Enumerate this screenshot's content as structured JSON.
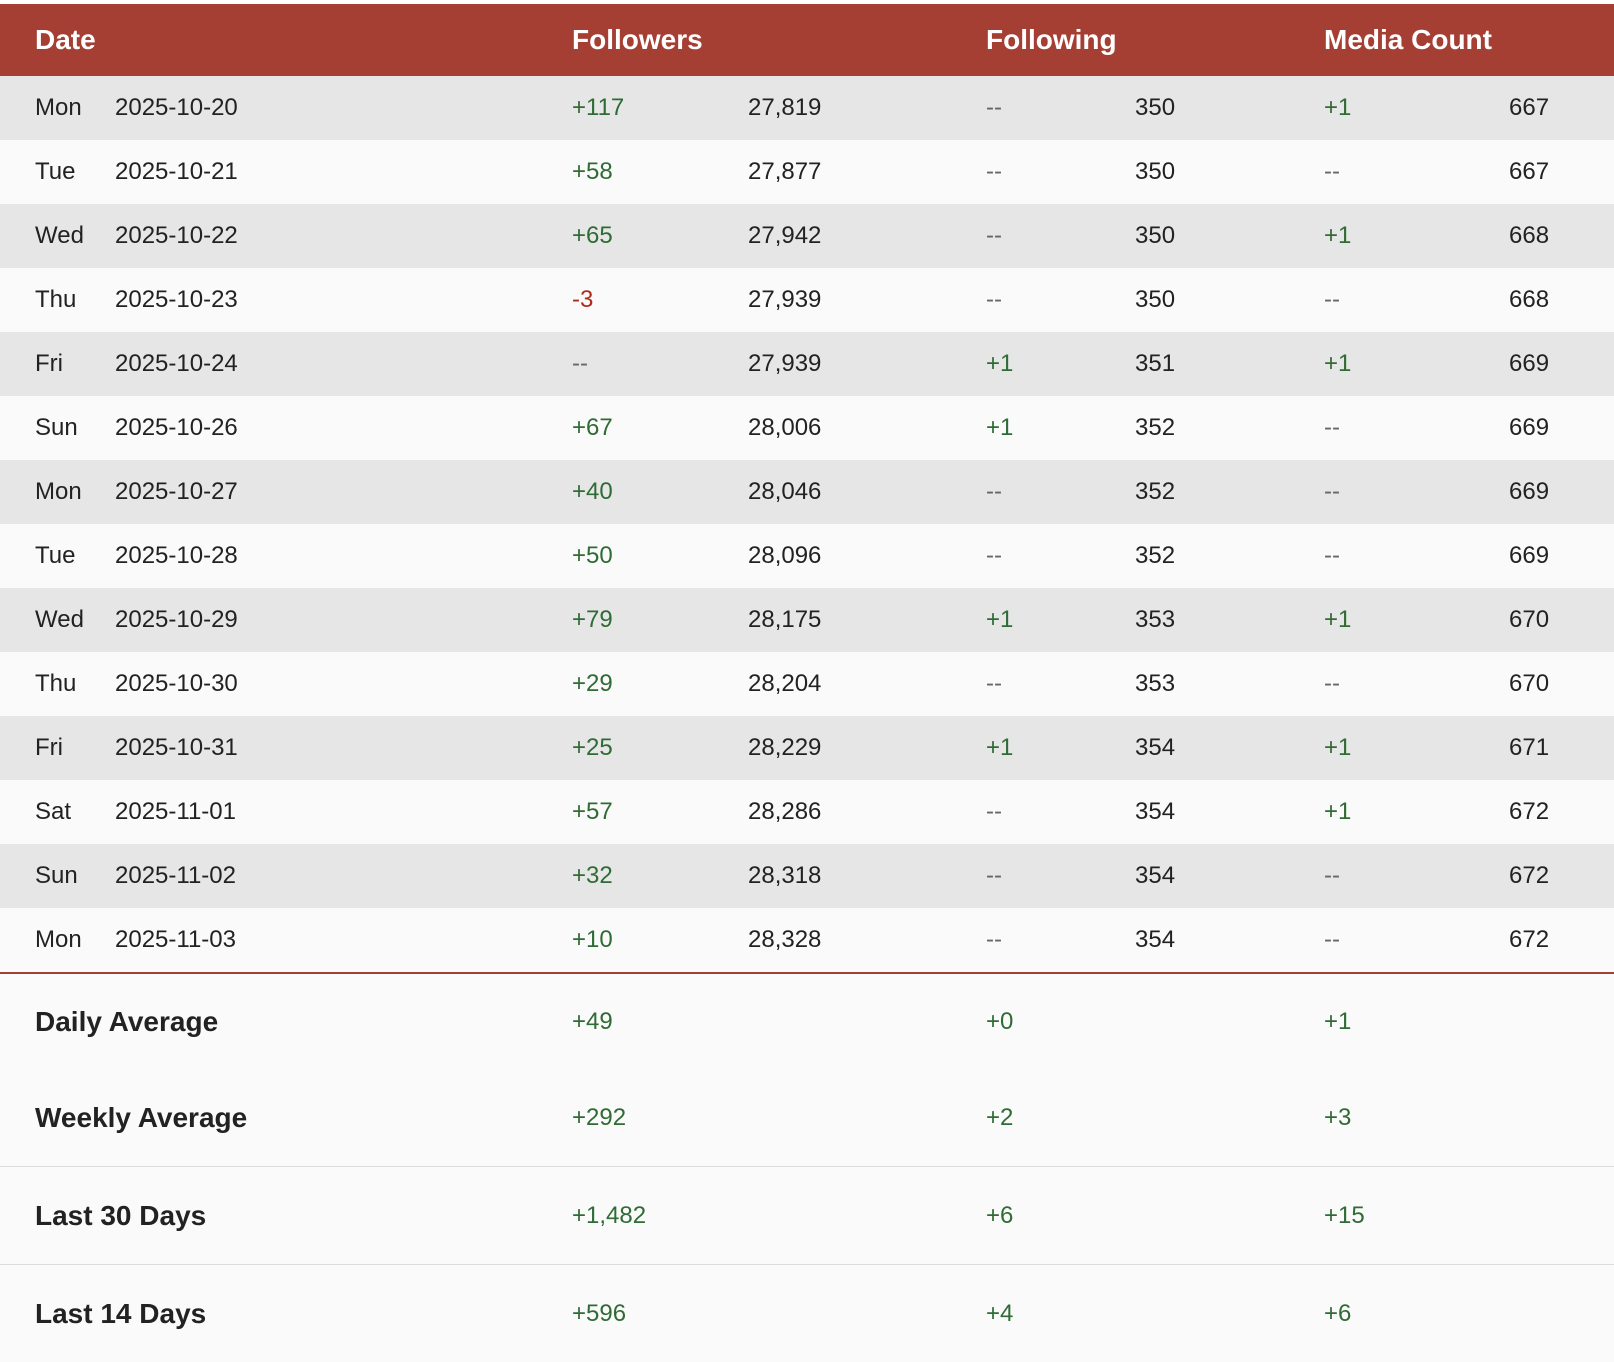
{
  "header": {
    "date": "Date",
    "followers": "Followers",
    "following": "Following",
    "media_count": "Media Count"
  },
  "rows": [
    {
      "day": "Mon",
      "date": "2025-10-20",
      "followers_delta": "+117",
      "followers_total": "27,819",
      "following_delta": "--",
      "following_total": "350",
      "media_delta": "+1",
      "media_total": "667"
    },
    {
      "day": "Tue",
      "date": "2025-10-21",
      "followers_delta": "+58",
      "followers_total": "27,877",
      "following_delta": "--",
      "following_total": "350",
      "media_delta": "--",
      "media_total": "667"
    },
    {
      "day": "Wed",
      "date": "2025-10-22",
      "followers_delta": "+65",
      "followers_total": "27,942",
      "following_delta": "--",
      "following_total": "350",
      "media_delta": "+1",
      "media_total": "668"
    },
    {
      "day": "Thu",
      "date": "2025-10-23",
      "followers_delta": "-3",
      "followers_total": "27,939",
      "following_delta": "--",
      "following_total": "350",
      "media_delta": "--",
      "media_total": "668"
    },
    {
      "day": "Fri",
      "date": "2025-10-24",
      "followers_delta": "--",
      "followers_total": "27,939",
      "following_delta": "+1",
      "following_total": "351",
      "media_delta": "+1",
      "media_total": "669"
    },
    {
      "day": "Sun",
      "date": "2025-10-26",
      "followers_delta": "+67",
      "followers_total": "28,006",
      "following_delta": "+1",
      "following_total": "352",
      "media_delta": "--",
      "media_total": "669"
    },
    {
      "day": "Mon",
      "date": "2025-10-27",
      "followers_delta": "+40",
      "followers_total": "28,046",
      "following_delta": "--",
      "following_total": "352",
      "media_delta": "--",
      "media_total": "669"
    },
    {
      "day": "Tue",
      "date": "2025-10-28",
      "followers_delta": "+50",
      "followers_total": "28,096",
      "following_delta": "--",
      "following_total": "352",
      "media_delta": "--",
      "media_total": "669"
    },
    {
      "day": "Wed",
      "date": "2025-10-29",
      "followers_delta": "+79",
      "followers_total": "28,175",
      "following_delta": "+1",
      "following_total": "353",
      "media_delta": "+1",
      "media_total": "670"
    },
    {
      "day": "Thu",
      "date": "2025-10-30",
      "followers_delta": "+29",
      "followers_total": "28,204",
      "following_delta": "--",
      "following_total": "353",
      "media_delta": "--",
      "media_total": "670"
    },
    {
      "day": "Fri",
      "date": "2025-10-31",
      "followers_delta": "+25",
      "followers_total": "28,229",
      "following_delta": "+1",
      "following_total": "354",
      "media_delta": "+1",
      "media_total": "671"
    },
    {
      "day": "Sat",
      "date": "2025-11-01",
      "followers_delta": "+57",
      "followers_total": "28,286",
      "following_delta": "--",
      "following_total": "354",
      "media_delta": "+1",
      "media_total": "672"
    },
    {
      "day": "Sun",
      "date": "2025-11-02",
      "followers_delta": "+32",
      "followers_total": "28,318",
      "following_delta": "--",
      "following_total": "354",
      "media_delta": "--",
      "media_total": "672"
    },
    {
      "day": "Mon",
      "date": "2025-11-03",
      "followers_delta": "+10",
      "followers_total": "28,328",
      "following_delta": "--",
      "following_total": "354",
      "media_delta": "--",
      "media_total": "672"
    }
  ],
  "summary": [
    {
      "label": "Daily Average",
      "followers": "+49",
      "following": "+0",
      "media": "+1"
    },
    {
      "label": "Weekly Average",
      "followers": "+292",
      "following": "+2",
      "media": "+3"
    },
    {
      "label": "Last 30 Days",
      "followers": "+1,482",
      "following": "+6",
      "media": "+15"
    },
    {
      "label": "Last 14 Days",
      "followers": "+596",
      "following": "+4",
      "media": "+6"
    }
  ],
  "colors": {
    "header_bg": "#a53f33",
    "positive": "#2f6b34",
    "negative": "#b02a1c",
    "neutral": "#666666",
    "row_shade": "#e6e6e6",
    "row_light": "#fafafa"
  }
}
